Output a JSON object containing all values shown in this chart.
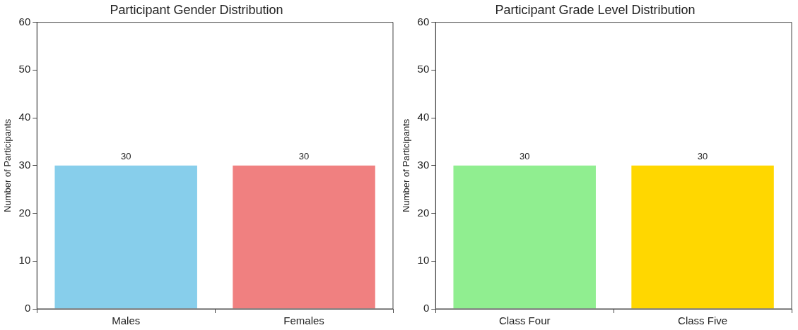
{
  "chart_data": [
    {
      "type": "bar",
      "title": "Participant Gender Distribution",
      "ylabel": "Number of Participants",
      "categories": [
        "Males",
        "Females"
      ],
      "values": [
        30,
        30
      ],
      "colors": [
        "#87ceeb",
        "#f08080"
      ],
      "ylim": [
        0,
        60
      ],
      "yticks": [
        0,
        10,
        20,
        30,
        40,
        50,
        60
      ],
      "data_labels": true,
      "legend": false
    },
    {
      "type": "bar",
      "title": "Participant Grade Level Distribution",
      "ylabel": "Number of Participants",
      "categories": [
        "Class Four",
        "Class Five"
      ],
      "values": [
        30,
        30
      ],
      "colors": [
        "#90ee90",
        "#ffd700"
      ],
      "ylim": [
        0,
        60
      ],
      "yticks": [
        0,
        10,
        20,
        30,
        40,
        50,
        60
      ],
      "data_labels": true,
      "legend": false
    }
  ]
}
